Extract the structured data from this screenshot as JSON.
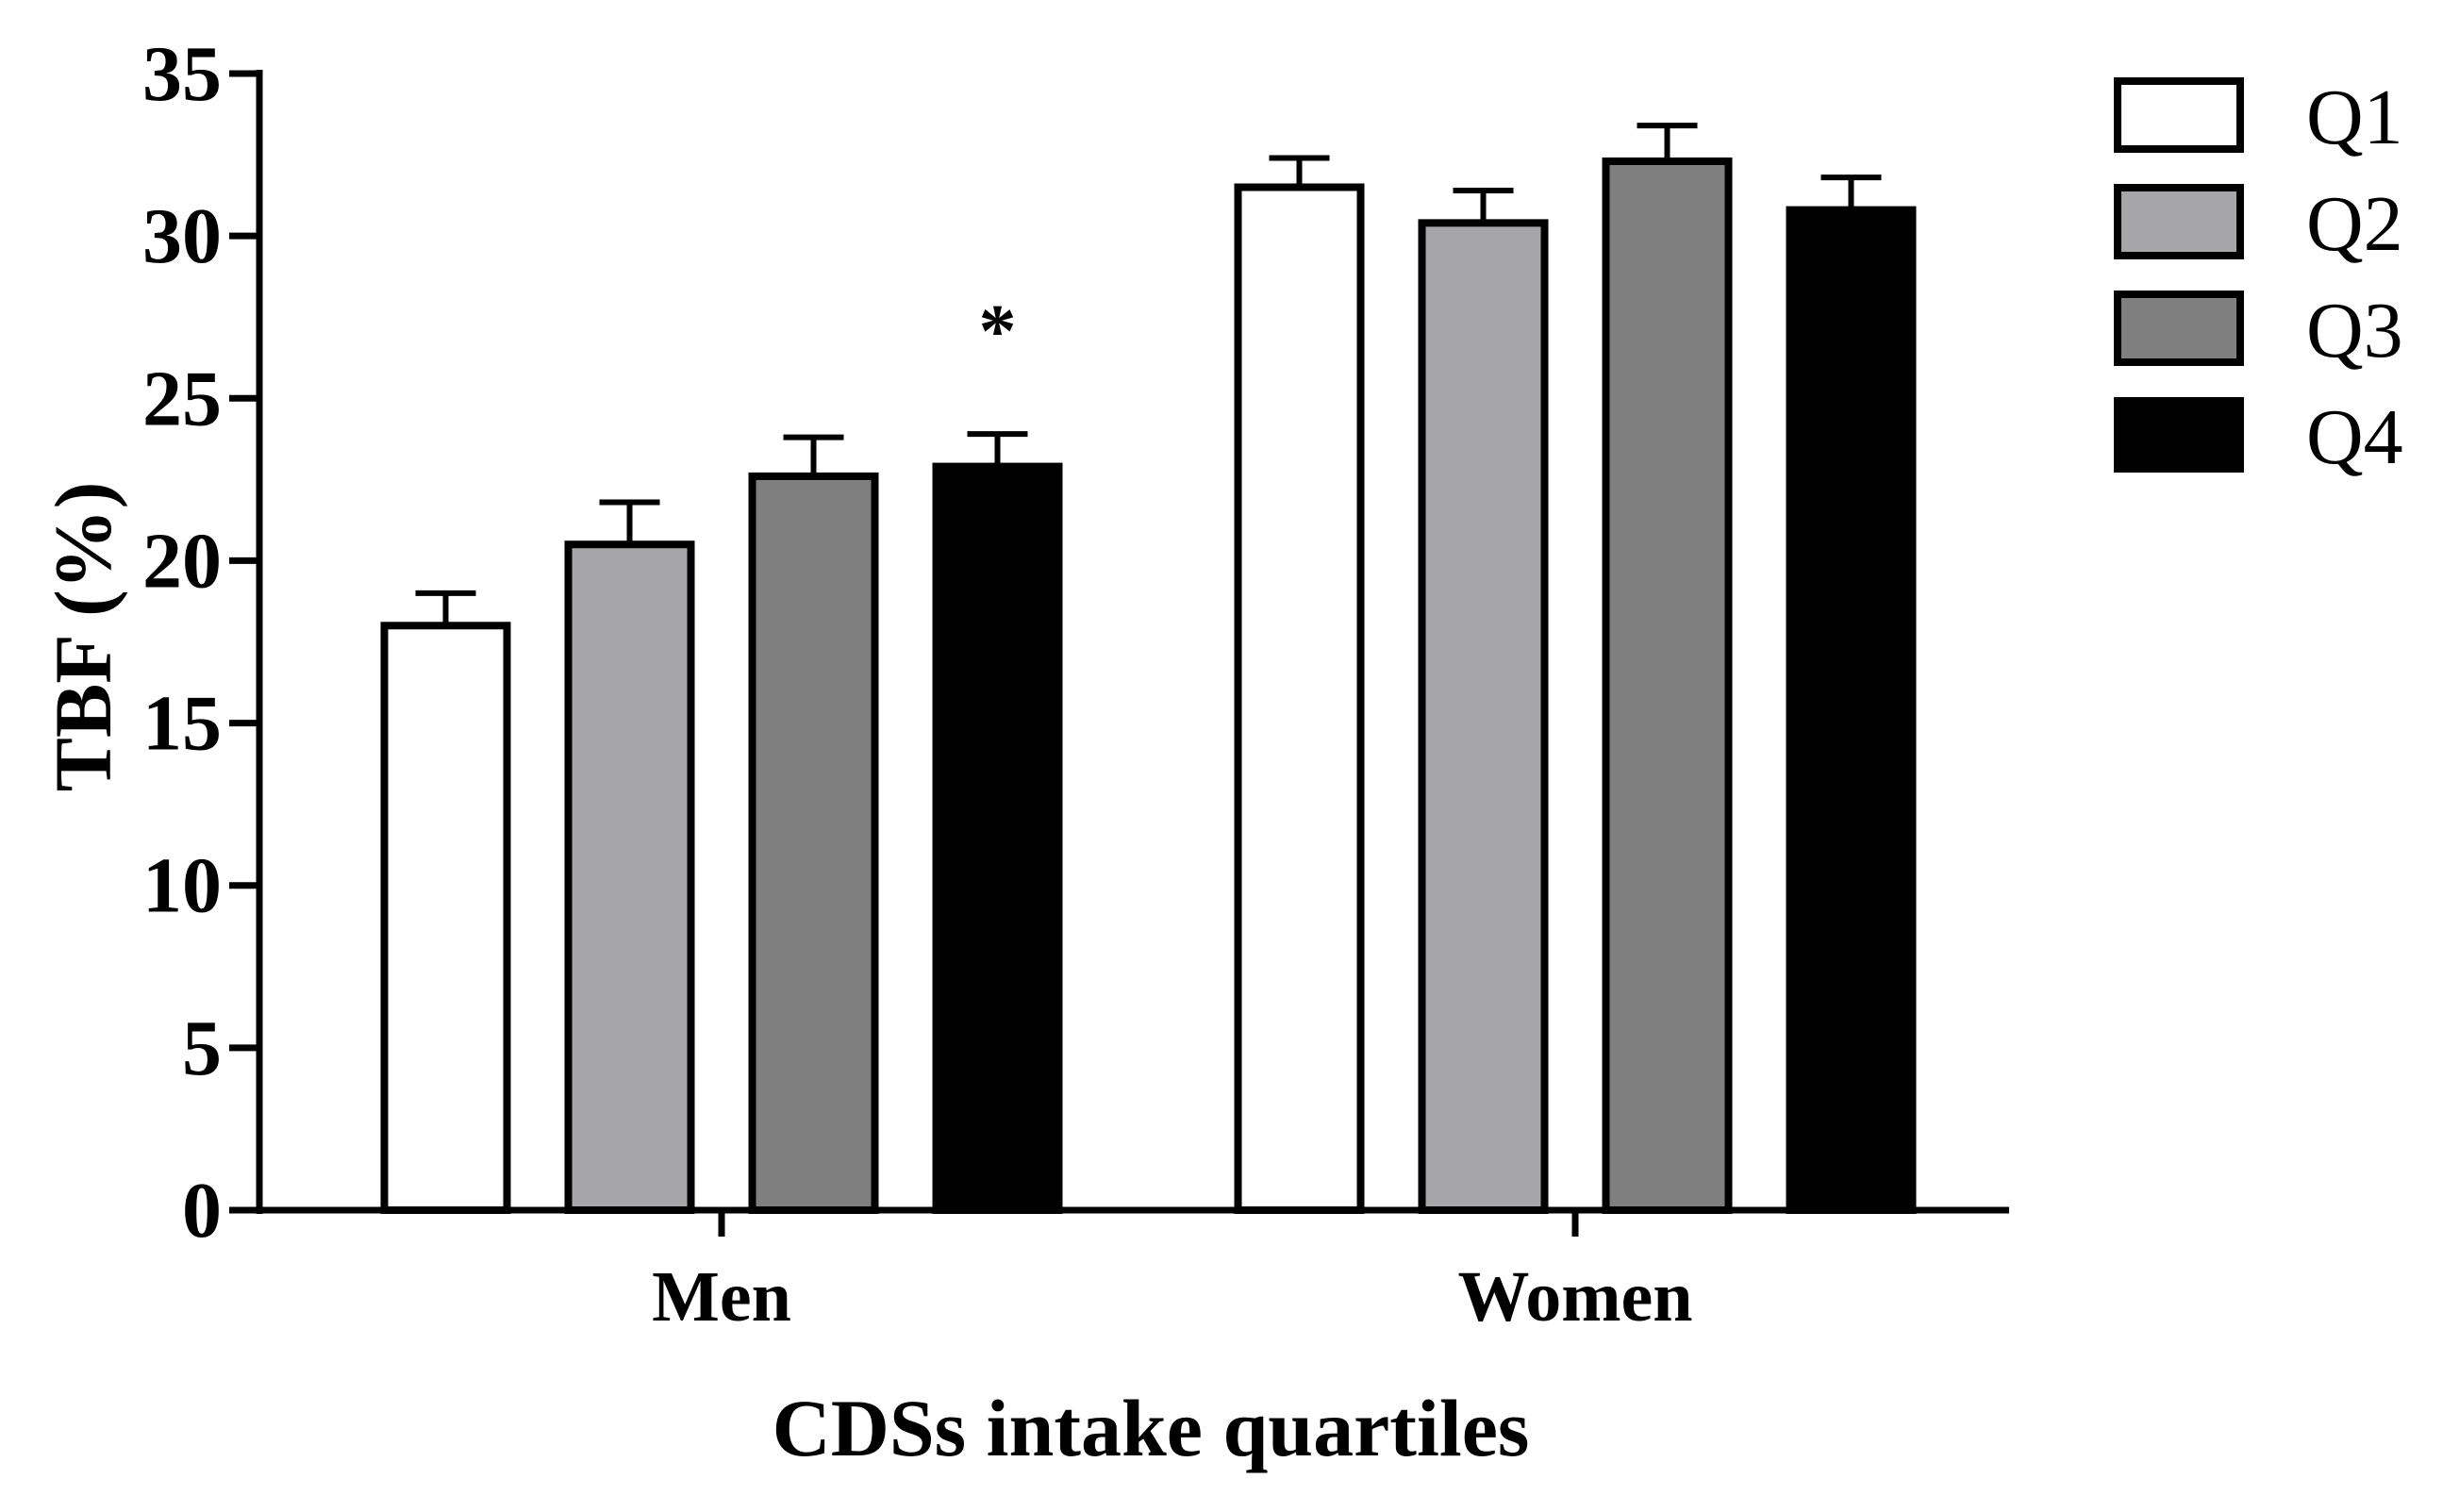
{
  "chart_data": {
    "type": "bar",
    "title": "",
    "xlabel": "CDSs intake quartiles",
    "ylabel": "TBF (%)",
    "ylim": [
      0,
      35
    ],
    "yticks": [
      "0",
      "5",
      "10",
      "15",
      "20",
      "25",
      "30",
      "35"
    ],
    "categories": [
      "Men",
      "Women"
    ],
    "series": [
      {
        "name": "Q1",
        "color": "#ffffff",
        "values": [
          18.0,
          31.5
        ],
        "errors": [
          1.0,
          0.9
        ]
      },
      {
        "name": "Q2",
        "color": "#a6a6a8",
        "values": [
          20.5,
          30.4
        ],
        "errors": [
          1.3,
          1.0
        ]
      },
      {
        "name": "Q3",
        "color": "#7f7f7f",
        "values": [
          22.6,
          32.3
        ],
        "errors": [
          1.2,
          1.1
        ]
      },
      {
        "name": "Q4",
        "color": "#000000",
        "values": [
          22.9,
          30.8
        ],
        "errors": [
          1.0,
          1.0
        ]
      }
    ],
    "annotations": [
      {
        "text": "*",
        "category": "Men",
        "series": "Q4"
      }
    ],
    "legend": "top-right",
    "grid": false
  }
}
